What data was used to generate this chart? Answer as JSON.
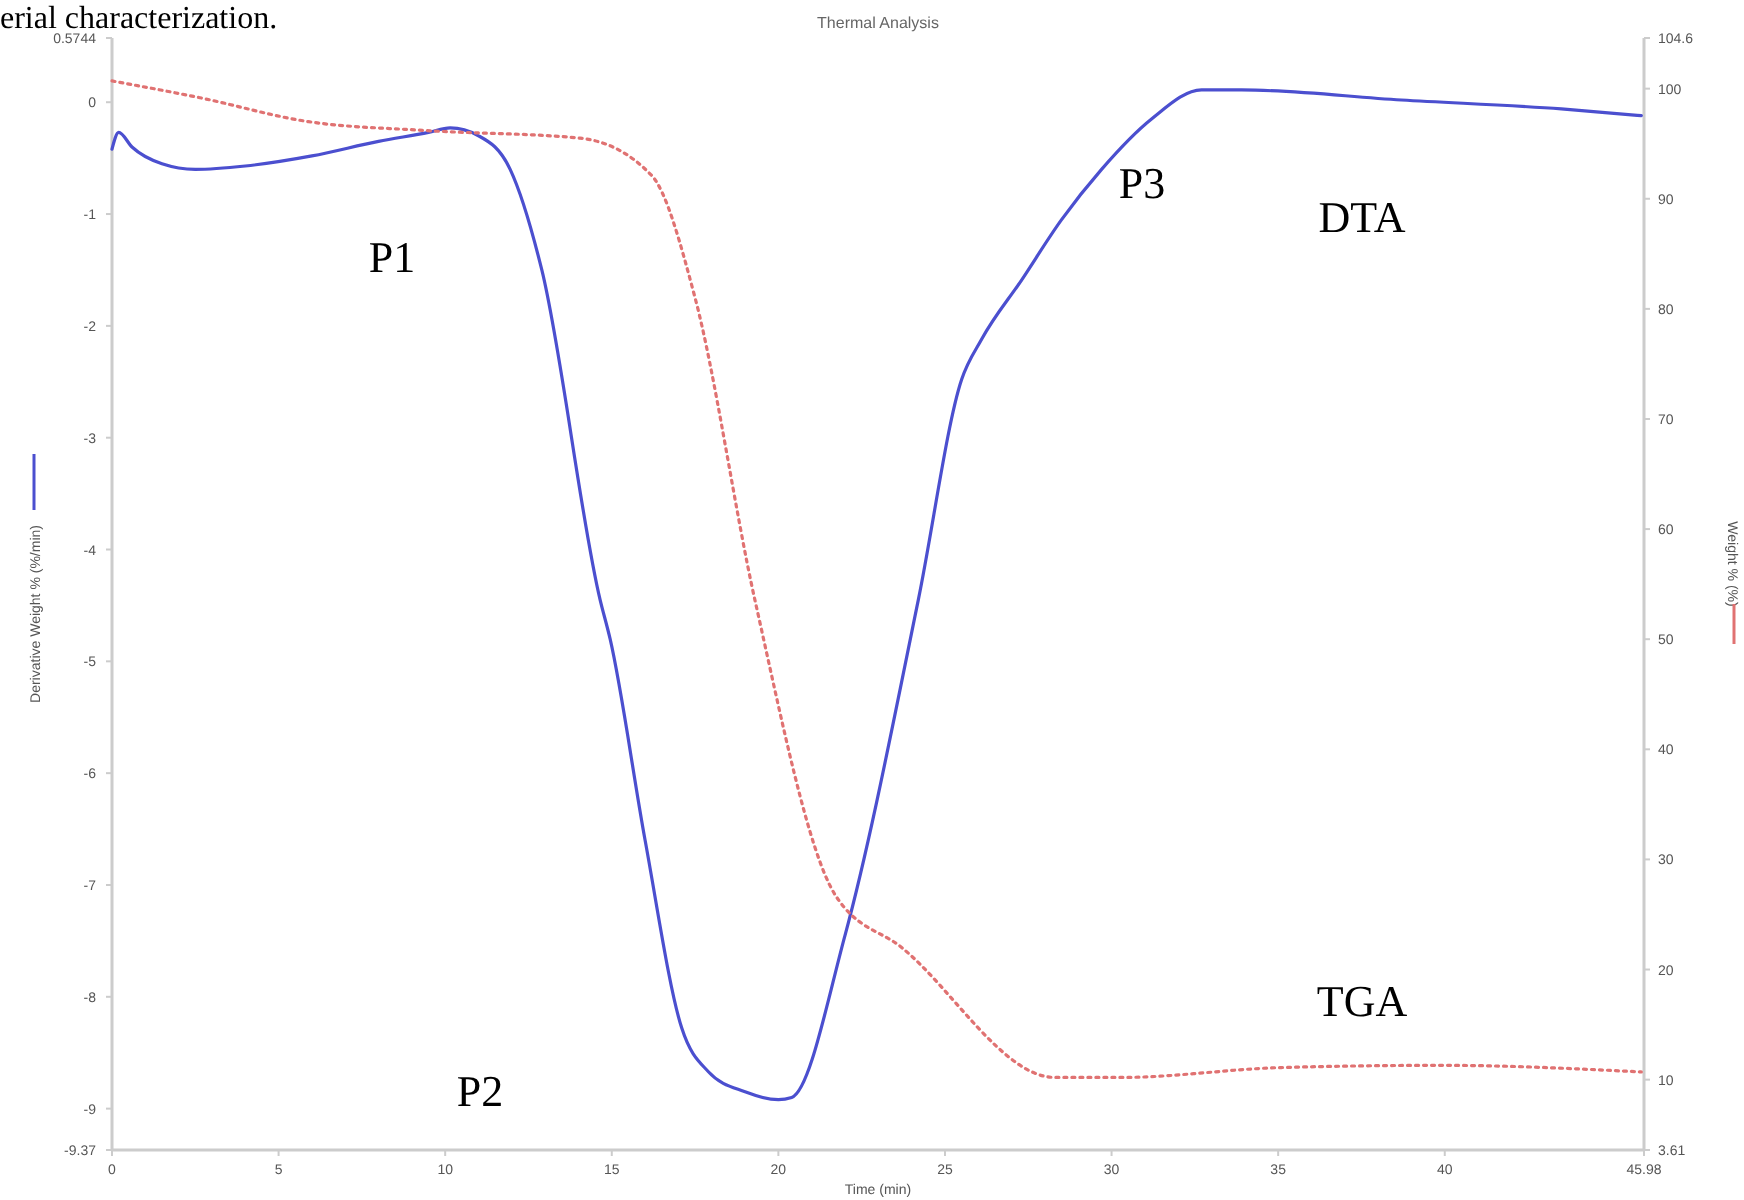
{
  "chart_data": {
    "type": "line",
    "title": "Thermal Analysis",
    "xlabel": "Time (min)",
    "ylabel": "Derivative Weight % (%/min)",
    "y2label": "Weight % (%)",
    "xlim": [
      0,
      45.98
    ],
    "xticks": [
      0,
      5,
      10,
      15,
      20,
      25,
      30,
      35,
      40,
      45.98
    ],
    "ylim": [
      -9.37,
      0.5744
    ],
    "yticks": [
      -9.37,
      -9,
      -8,
      -7,
      -6,
      -5,
      -4,
      -3,
      -2,
      -1,
      0,
      0.5744
    ],
    "y2lim": [
      3.61,
      104.6
    ],
    "y2ticks": [
      3.61,
      10,
      20,
      30,
      40,
      50,
      60,
      70,
      80,
      90,
      100,
      104.6
    ],
    "grid": false,
    "series": [
      {
        "color": "#4b4fcf",
        "line_style": "solid",
        "x": [
          0,
          0.2,
          0.6,
          1.5,
          2.5,
          4,
          6,
          8,
          9.5,
          10.15,
          11,
          11.95,
          12.9,
          14.65,
          14.95,
          16,
          17.1,
          17.9,
          19,
          20,
          20.4,
          22,
          24.2,
          25.5,
          26.1,
          27.3,
          28.5,
          29.7,
          31.2,
          32.7,
          33.9,
          38.7,
          43.5,
          45.9
        ],
        "values": [
          -0.42,
          -0.27,
          -0.4,
          -0.55,
          -0.6,
          -0.57,
          -0.48,
          -0.35,
          -0.27,
          -0.23,
          -0.3,
          -0.6,
          -1.5,
          -4.45,
          -4.8,
          -6.6,
          -8.28,
          -8.67,
          -8.85,
          -8.92,
          -8.9,
          -7.45,
          -4.45,
          -2.48,
          -2.12,
          -1.59,
          -1.05,
          -0.6,
          -0.15,
          0.11,
          0.11,
          0.02,
          -0.06,
          -0.12
        ]
      },
      {
        "axis": "y2",
        "color": "#e07272",
        "line_style": "dotted",
        "x": [
          0,
          2.6,
          5.9,
          9.4,
          14.05,
          16.2,
          17.5,
          19.3,
          21.7,
          23.7,
          28.3,
          30.3,
          35.1,
          39.9,
          45.9
        ],
        "values": [
          100.7,
          99.2,
          97.0,
          96.2,
          95.5,
          92.1,
          81.0,
          53.5,
          26.8,
          22.0,
          10.2,
          10.2,
          11.1,
          11.3,
          10.7
        ]
      }
    ],
    "annotations": [
      "erial characterization.",
      "P1",
      "P2",
      "P3",
      "DTA",
      "TGA"
    ]
  }
}
